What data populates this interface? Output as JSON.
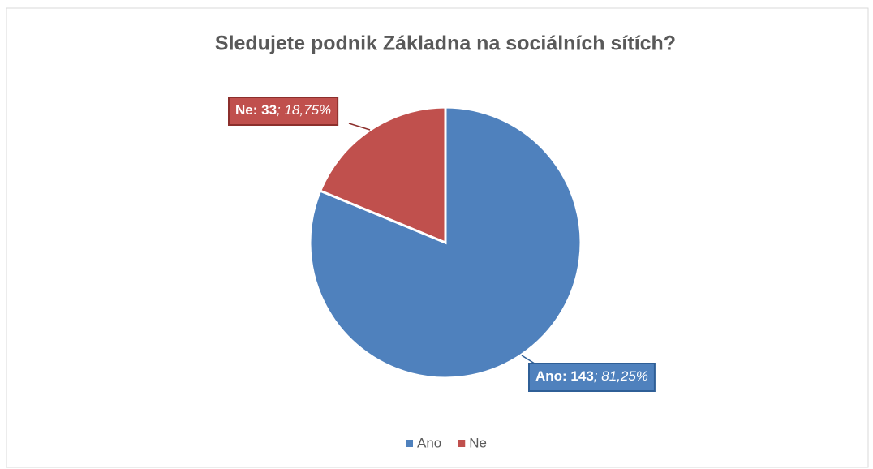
{
  "chart_data": {
    "type": "pie",
    "title": "Sledujete podnik Základna na sociálních sítích?",
    "categories": [
      "Ano",
      "Ne"
    ],
    "values": [
      143,
      33
    ],
    "value_labels": [
      "Ano: 143",
      "Ne: 33"
    ],
    "percentages": [
      81.25,
      18.75
    ],
    "percentage_labels": [
      "; 81,25%",
      "; 18,75%"
    ],
    "colors": [
      "#4f81bd",
      "#c0504d"
    ],
    "legend": "bottom"
  }
}
